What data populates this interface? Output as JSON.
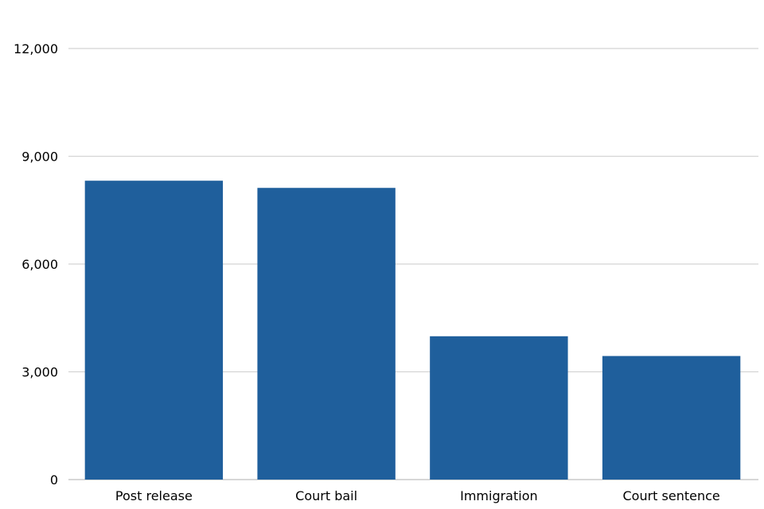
{
  "chart_data": {
    "type": "bar",
    "title": "",
    "xlabel": "",
    "ylabel": "",
    "categories": [
      "Post release",
      "Court bail",
      "Immigration",
      "Court sentence"
    ],
    "values": [
      8320,
      8120,
      3990,
      3440
    ],
    "ylim": [
      0,
      12000
    ],
    "yticks": [
      0,
      3000,
      6000,
      9000,
      12000
    ],
    "ytick_labels": [
      "0",
      "3,000",
      "6,000",
      "9,000",
      "12,000"
    ],
    "grid": true,
    "legend": "none",
    "bar_color": "#1f5f9c"
  }
}
